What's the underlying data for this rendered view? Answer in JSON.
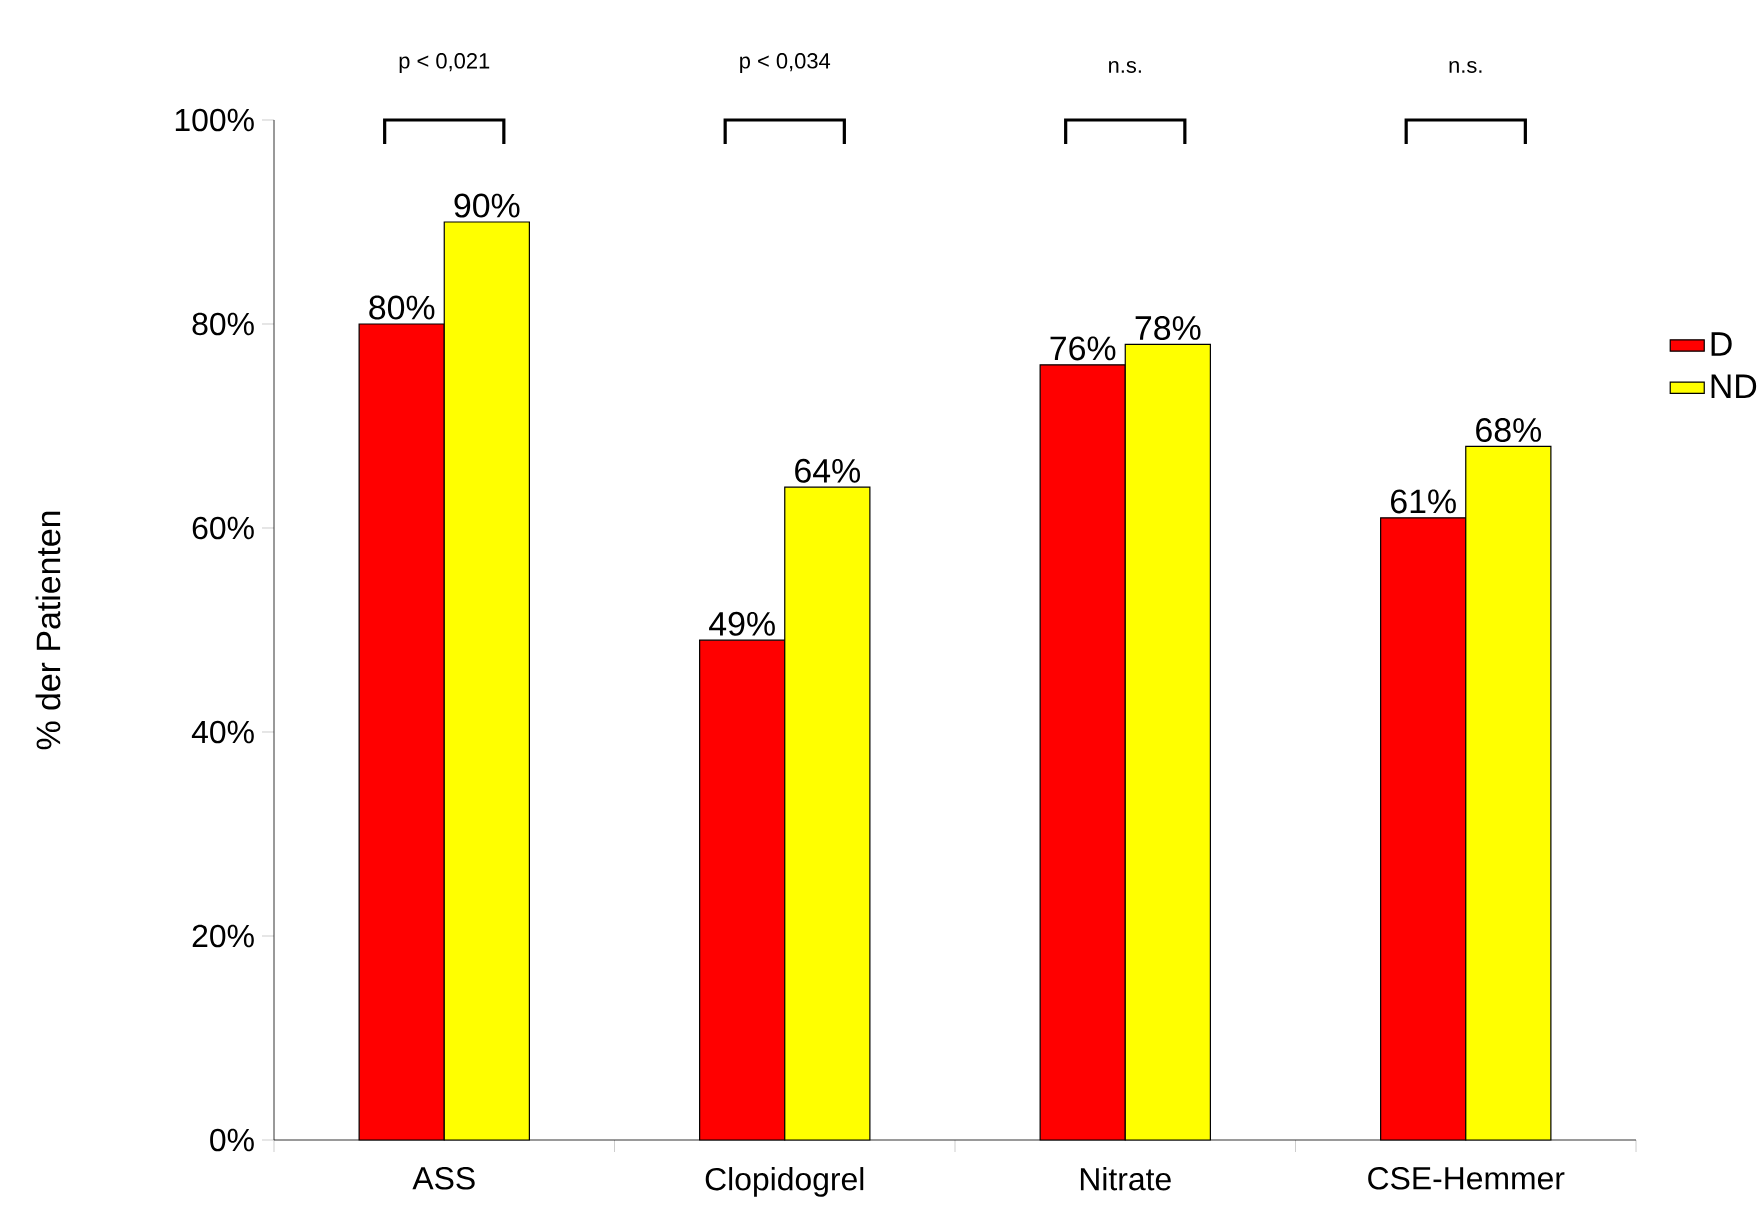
{
  "chart_data": {
    "type": "bar",
    "ylabel": "% der Patienten",
    "categories": [
      "ASS",
      "Clopidogrel",
      "Nitrate",
      "CSE-Hemmer"
    ],
    "series": [
      {
        "name": "D",
        "color": "#ff0000",
        "values": [
          80,
          49,
          76,
          61
        ],
        "value_labels": [
          "80%",
          "49%",
          "76%",
          "61%"
        ]
      },
      {
        "name": "ND",
        "color": "#ffff00",
        "values": [
          90,
          64,
          78,
          68
        ],
        "value_labels": [
          "90%",
          "64%",
          "78%",
          "68%"
        ]
      }
    ],
    "ylim": [
      0,
      100
    ],
    "yticks": [
      {
        "value": 0,
        "label": "0%"
      },
      {
        "value": 20,
        "label": "20%"
      },
      {
        "value": 40,
        "label": "40%"
      },
      {
        "value": 60,
        "label": "60%"
      },
      {
        "value": 80,
        "label": "80%"
      },
      {
        "value": 100,
        "label": "100%"
      }
    ],
    "annotations": [
      "p < 0,021",
      "p < 0,034",
      "n.s.",
      "n.s."
    ],
    "grid": false,
    "legend": "right"
  }
}
